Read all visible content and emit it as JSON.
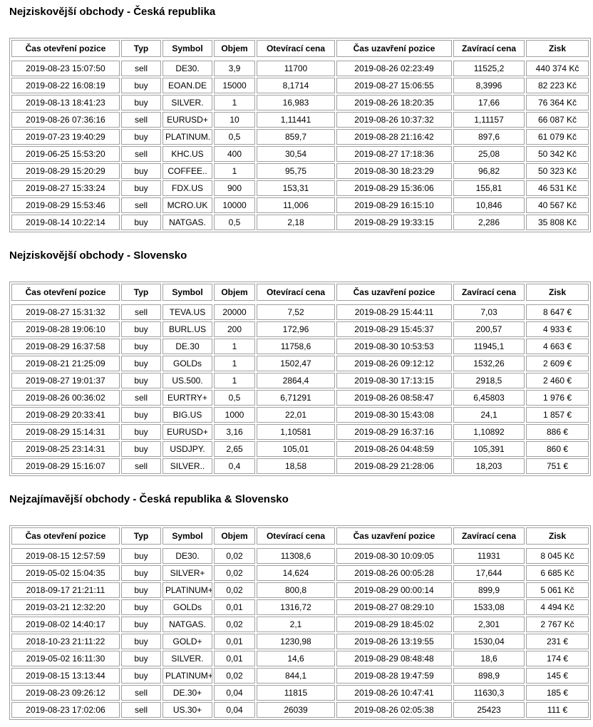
{
  "columns": [
    "Čas otevření pozice",
    "Typ",
    "Symbol",
    "Objem",
    "Otevírací cena",
    "Čas uzavření pozice",
    "Zavírací cena",
    "Zisk"
  ],
  "tables": [
    {
      "title": "Nejziskovější obchody - Česká republika",
      "rows": [
        [
          "2019-08-23 15:07:50",
          "sell",
          "DE30.",
          "3,9",
          "11700",
          "2019-08-26 02:23:49",
          "11525,2",
          "440 374 Kč"
        ],
        [
          "2019-08-22 16:08:19",
          "buy",
          "EOAN.DE",
          "15000",
          "8,1714",
          "2019-08-27 15:06:55",
          "8,3996",
          "82 223 Kč"
        ],
        [
          "2019-08-13 18:41:23",
          "buy",
          "SILVER.",
          "1",
          "16,983",
          "2019-08-26 18:20:35",
          "17,66",
          "76 364 Kč"
        ],
        [
          "2019-08-26 07:36:16",
          "sell",
          "EURUSD+",
          "10",
          "1,11441",
          "2019-08-26 10:37:32",
          "1,11157",
          "66 087 Kč"
        ],
        [
          "2019-07-23 19:40:29",
          "buy",
          "PLATINUM.",
          "0,5",
          "859,7",
          "2019-08-28 21:16:42",
          "897,6",
          "61 079 Kč"
        ],
        [
          "2019-06-25 15:53:20",
          "sell",
          "KHC.US",
          "400",
          "30,54",
          "2019-08-27 17:18:36",
          "25,08",
          "50 342 Kč"
        ],
        [
          "2019-08-29 15:20:29",
          "buy",
          "COFFEE..",
          "1",
          "95,75",
          "2019-08-30 18:23:29",
          "96,82",
          "50 323 Kč"
        ],
        [
          "2019-08-27 15:33:24",
          "buy",
          "FDX.US",
          "900",
          "153,31",
          "2019-08-29 15:36:06",
          "155,81",
          "46 531 Kč"
        ],
        [
          "2019-08-29 15:53:46",
          "sell",
          "MCRO.UK",
          "10000",
          "11,006",
          "2019-08-29 16:15:10",
          "10,846",
          "40 567 Kč"
        ],
        [
          "2019-08-14 10:22:14",
          "buy",
          "NATGAS.",
          "0,5",
          "2,18",
          "2019-08-29 19:33:15",
          "2,286",
          "35 808 Kč"
        ]
      ]
    },
    {
      "title": "Nejziskovější obchody - Slovensko",
      "rows": [
        [
          "2019-08-27 15:31:32",
          "sell",
          "TEVA.US",
          "20000",
          "7,52",
          "2019-08-29 15:44:11",
          "7,03",
          "8 647 €"
        ],
        [
          "2019-08-28 19:06:10",
          "buy",
          "BURL.US",
          "200",
          "172,96",
          "2019-08-29 15:45:37",
          "200,57",
          "4 933 €"
        ],
        [
          "2019-08-29 16:37:58",
          "buy",
          "DE.30",
          "1",
          "11758,6",
          "2019-08-30 10:53:53",
          "11945,1",
          "4 663 €"
        ],
        [
          "2019-08-21 21:25:09",
          "buy",
          "GOLDs",
          "1",
          "1502,47",
          "2019-08-26 09:12:12",
          "1532,26",
          "2 609 €"
        ],
        [
          "2019-08-27 19:01:37",
          "buy",
          "US.500.",
          "1",
          "2864,4",
          "2019-08-30 17:13:15",
          "2918,5",
          "2 460 €"
        ],
        [
          "2019-08-26 00:36:02",
          "sell",
          "EURTRY+",
          "0,5",
          "6,71291",
          "2019-08-26 08:58:47",
          "6,45803",
          "1 976 €"
        ],
        [
          "2019-08-29 20:33:41",
          "buy",
          "BIG.US",
          "1000",
          "22,01",
          "2019-08-30 15:43:08",
          "24,1",
          "1 857 €"
        ],
        [
          "2019-08-29 15:14:31",
          "buy",
          "EURUSD+",
          "3,16",
          "1,10581",
          "2019-08-29 16:37:16",
          "1,10892",
          "886 €"
        ],
        [
          "2019-08-25 23:14:31",
          "buy",
          "USDJPY.",
          "2,65",
          "105,01",
          "2019-08-26 04:48:59",
          "105,391",
          "860 €"
        ],
        [
          "2019-08-29 15:16:07",
          "sell",
          "SILVER..",
          "0,4",
          "18,58",
          "2019-08-29 21:28:06",
          "18,203",
          "751 €"
        ]
      ]
    },
    {
      "title": "Nejzajímavější obchody - Česká republika & Slovensko",
      "rows": [
        [
          "2019-08-15 12:57:59",
          "buy",
          "DE30.",
          "0,02",
          "11308,6",
          "2019-08-30 10:09:05",
          "11931",
          "8 045 Kč"
        ],
        [
          "2019-05-02 15:04:35",
          "buy",
          "SILVER+",
          "0,02",
          "14,624",
          "2019-08-26 00:05:28",
          "17,644",
          "6 685 Kč"
        ],
        [
          "2018-09-17 21:21:11",
          "buy",
          "PLATINUM+",
          "0,02",
          "800,8",
          "2019-08-29 00:00:14",
          "899,9",
          "5 061 Kč"
        ],
        [
          "2019-03-21 12:32:20",
          "buy",
          "GOLDs",
          "0,01",
          "1316,72",
          "2019-08-27 08:29:10",
          "1533,08",
          "4 494 Kč"
        ],
        [
          "2019-08-02 14:40:17",
          "buy",
          "NATGAS.",
          "0,02",
          "2,1",
          "2019-08-29 18:45:02",
          "2,301",
          "2 767 Kč"
        ],
        [
          "2018-10-23 21:11:22",
          "buy",
          "GOLD+",
          "0,01",
          "1230,98",
          "2019-08-26 13:19:55",
          "1530,04",
          "231 €"
        ],
        [
          "2019-05-02 16:11:30",
          "buy",
          "SILVER.",
          "0,01",
          "14,6",
          "2019-08-29 08:48:48",
          "18,6",
          "174 €"
        ],
        [
          "2019-08-15 13:13:44",
          "buy",
          "PLATINUM+",
          "0,02",
          "844,1",
          "2019-08-28 19:47:59",
          "898,9",
          "145 €"
        ],
        [
          "2019-08-23 09:26:12",
          "sell",
          "DE.30+",
          "0,04",
          "11815",
          "2019-08-26 10:47:41",
          "11630,3",
          "185 €"
        ],
        [
          "2019-08-23 17:02:06",
          "sell",
          "US.30+",
          "0,04",
          "26039",
          "2019-08-26 02:05:38",
          "25423",
          "111 €"
        ]
      ]
    }
  ],
  "colors": {
    "table_border": "#a0a0a0",
    "text": "#000000",
    "background": "#ffffff"
  }
}
